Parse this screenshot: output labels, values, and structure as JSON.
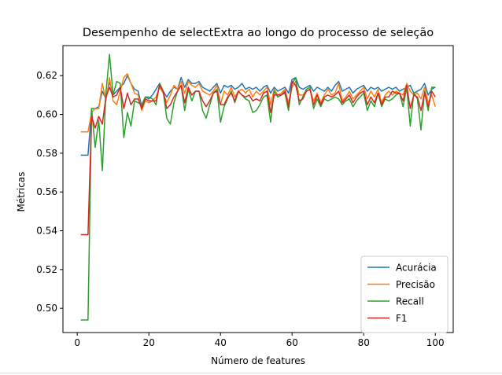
{
  "chart_data": {
    "type": "line",
    "title": "Desempenho de selectExtra ao longo do processo de seleção",
    "xlabel": "Número de features",
    "ylabel": "Métricas",
    "xlim": [
      -4,
      105
    ],
    "ylim": [
      0.4875,
      0.6355
    ],
    "xticks": [
      0,
      20,
      40,
      60,
      80,
      100
    ],
    "yticks": [
      0.5,
      0.52,
      0.54,
      0.56,
      0.58,
      0.6,
      0.62
    ],
    "grid": false,
    "legend_position": "lower-right",
    "x": [
      1,
      2,
      3,
      4,
      5,
      6,
      7,
      8,
      9,
      10,
      11,
      12,
      13,
      14,
      15,
      16,
      17,
      18,
      19,
      20,
      21,
      22,
      23,
      24,
      25,
      26,
      27,
      28,
      29,
      30,
      31,
      32,
      33,
      34,
      35,
      36,
      37,
      38,
      39,
      40,
      41,
      42,
      43,
      44,
      45,
      46,
      47,
      48,
      49,
      50,
      51,
      52,
      53,
      54,
      55,
      56,
      57,
      58,
      59,
      60,
      61,
      62,
      63,
      64,
      65,
      66,
      67,
      68,
      69,
      70,
      71,
      72,
      73,
      74,
      75,
      76,
      77,
      78,
      79,
      80,
      81,
      82,
      83,
      84,
      85,
      86,
      87,
      88,
      89,
      90,
      91,
      92,
      93,
      94,
      95,
      96,
      97,
      98,
      99,
      100
    ],
    "series": [
      {
        "name": "Acurácia",
        "color": "#1f77b4",
        "values": [
          0.579,
          0.579,
          0.579,
          0.603,
          0.603,
          0.604,
          0.612,
          0.608,
          0.617,
          0.61,
          0.612,
          0.614,
          0.616,
          0.62,
          0.616,
          0.613,
          0.612,
          0.604,
          0.609,
          0.608,
          0.61,
          0.613,
          0.616,
          0.612,
          0.609,
          0.612,
          0.614,
          0.613,
          0.619,
          0.614,
          0.618,
          0.616,
          0.616,
          0.617,
          0.614,
          0.613,
          0.612,
          0.614,
          0.616,
          0.611,
          0.615,
          0.614,
          0.615,
          0.613,
          0.614,
          0.616,
          0.613,
          0.614,
          0.613,
          0.614,
          0.612,
          0.614,
          0.615,
          0.611,
          0.614,
          0.612,
          0.613,
          0.614,
          0.611,
          0.618,
          0.619,
          0.614,
          0.613,
          0.614,
          0.615,
          0.612,
          0.614,
          0.613,
          0.612,
          0.614,
          0.612,
          0.615,
          0.617,
          0.612,
          0.613,
          0.614,
          0.611,
          0.613,
          0.614,
          0.615,
          0.612,
          0.614,
          0.613,
          0.614,
          0.612,
          0.613,
          0.614,
          0.613,
          0.614,
          0.612,
          0.613,
          0.614,
          0.615,
          0.611,
          0.612,
          0.613,
          0.616,
          0.61,
          0.613,
          0.614
        ]
      },
      {
        "name": "Precisão",
        "color": "#ff7f0e",
        "values": [
          0.591,
          0.591,
          0.591,
          0.601,
          0.603,
          0.603,
          0.616,
          0.607,
          0.619,
          0.607,
          0.605,
          0.612,
          0.619,
          0.621,
          0.616,
          0.611,
          0.61,
          0.602,
          0.607,
          0.606,
          0.607,
          0.609,
          0.614,
          0.611,
          0.606,
          0.61,
          0.615,
          0.613,
          0.617,
          0.611,
          0.617,
          0.615,
          0.614,
          0.616,
          0.612,
          0.611,
          0.61,
          0.612,
          0.615,
          0.605,
          0.612,
          0.61,
          0.614,
          0.609,
          0.612,
          0.613,
          0.611,
          0.613,
          0.609,
          0.612,
          0.61,
          0.612,
          0.614,
          0.605,
          0.613,
          0.61,
          0.611,
          0.613,
          0.606,
          0.614,
          0.617,
          0.61,
          0.61,
          0.612,
          0.613,
          0.607,
          0.611,
          0.606,
          0.61,
          0.613,
          0.61,
          0.611,
          0.616,
          0.607,
          0.609,
          0.612,
          0.608,
          0.61,
          0.612,
          0.614,
          0.608,
          0.612,
          0.609,
          0.613,
          0.606,
          0.61,
          0.612,
          0.61,
          0.612,
          0.611,
          0.61,
          0.616,
          0.612,
          0.61,
          0.611,
          0.608,
          0.614,
          0.606,
          0.61,
          0.604
        ]
      },
      {
        "name": "Recall",
        "color": "#2ca02c",
        "values": [
          0.494,
          0.494,
          0.494,
          0.603,
          0.583,
          0.597,
          0.571,
          0.611,
          0.631,
          0.61,
          0.617,
          0.616,
          0.588,
          0.601,
          0.594,
          0.607,
          0.606,
          0.605,
          0.609,
          0.609,
          0.608,
          0.605,
          0.616,
          0.612,
          0.598,
          0.595,
          0.606,
          0.612,
          0.615,
          0.602,
          0.613,
          0.607,
          0.612,
          0.612,
          0.602,
          0.598,
          0.605,
          0.611,
          0.613,
          0.596,
          0.604,
          0.608,
          0.612,
          0.606,
          0.612,
          0.61,
          0.608,
          0.607,
          0.601,
          0.602,
          0.605,
          0.609,
          0.61,
          0.596,
          0.612,
          0.609,
          0.61,
          0.611,
          0.602,
          0.616,
          0.619,
          0.605,
          0.609,
          0.613,
          0.614,
          0.603,
          0.608,
          0.604,
          0.608,
          0.607,
          0.608,
          0.609,
          0.608,
          0.605,
          0.607,
          0.608,
          0.604,
          0.607,
          0.609,
          0.611,
          0.602,
          0.607,
          0.604,
          0.611,
          0.604,
          0.608,
          0.607,
          0.608,
          0.61,
          0.611,
          0.604,
          0.614,
          0.594,
          0.611,
          0.608,
          0.592,
          0.612,
          0.602,
          0.614,
          0.614
        ]
      },
      {
        "name": "F1",
        "color": "#d62728",
        "values": [
          0.538,
          0.538,
          0.538,
          0.599,
          0.593,
          0.599,
          0.595,
          0.609,
          0.614,
          0.609,
          0.61,
          0.614,
          0.603,
          0.611,
          0.605,
          0.608,
          0.608,
          0.603,
          0.608,
          0.607,
          0.607,
          0.607,
          0.615,
          0.612,
          0.603,
          0.605,
          0.609,
          0.612,
          0.615,
          0.606,
          0.614,
          0.61,
          0.612,
          0.612,
          0.607,
          0.604,
          0.607,
          0.611,
          0.612,
          0.605,
          0.605,
          0.609,
          0.611,
          0.607,
          0.612,
          0.61,
          0.609,
          0.61,
          0.607,
          0.608,
          0.607,
          0.611,
          0.612,
          0.601,
          0.61,
          0.61,
          0.61,
          0.612,
          0.604,
          0.617,
          0.615,
          0.607,
          0.608,
          0.612,
          0.613,
          0.605,
          0.61,
          0.605,
          0.609,
          0.61,
          0.609,
          0.61,
          0.612,
          0.606,
          0.608,
          0.61,
          0.606,
          0.609,
          0.611,
          0.612,
          0.605,
          0.609,
          0.606,
          0.611,
          0.605,
          0.609,
          0.609,
          0.612,
          0.611,
          0.611,
          0.607,
          0.615,
          0.603,
          0.61,
          0.609,
          0.602,
          0.611,
          0.604,
          0.612,
          0.609
        ]
      }
    ]
  }
}
